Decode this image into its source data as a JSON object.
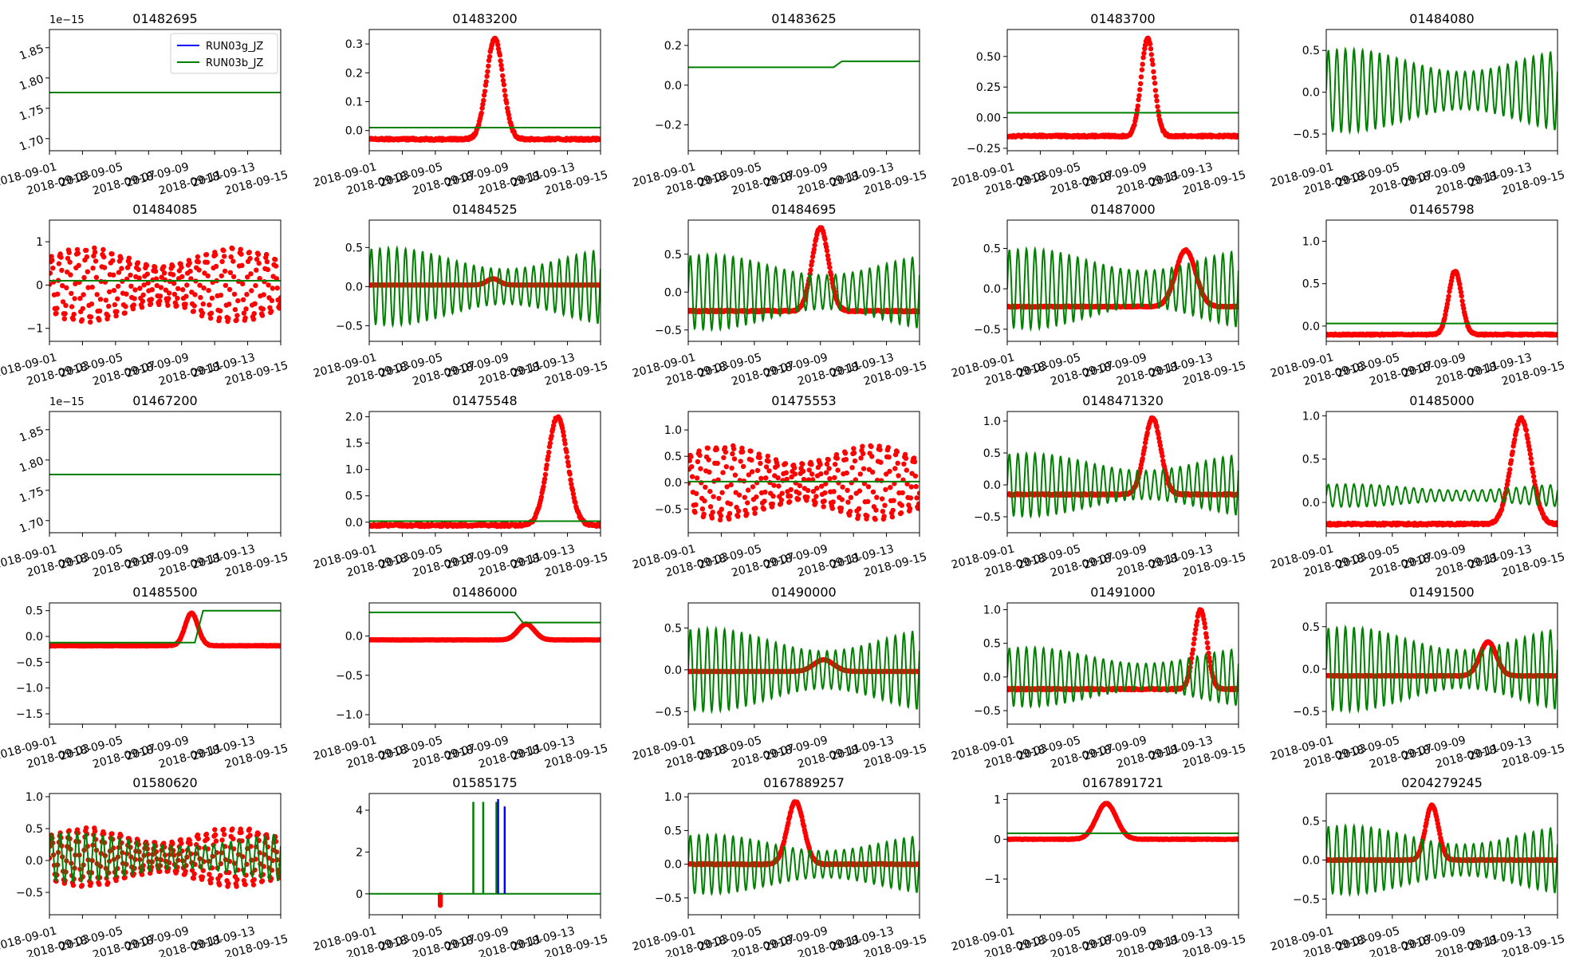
{
  "figure": {
    "type": "small-multiples",
    "x_tick_labels": [
      "2018-09-01",
      "2018-09-03",
      "2018-09-05",
      "2018-09-07",
      "2018-09-09",
      "2018-09-11",
      "2018-09-13",
      "2018-09-15"
    ],
    "legend": [
      {
        "name": "RUN03g_JZ",
        "color": "#0000ff"
      },
      {
        "name": "RUN03b_JZ",
        "color": "#008000"
      }
    ],
    "observed_color": "#ff0000"
  },
  "chart_data": [
    {
      "type": "line",
      "title": "01482695",
      "ylim": [
        1.68,
        1.88
      ],
      "yticks": [
        1.7,
        1.75,
        1.8,
        1.85
      ],
      "ytick_labels": [
        "1.70",
        "1.75",
        "1.80",
        "1.85"
      ],
      "offset_label": "1e−15",
      "flat_value": 1.776,
      "legend": true
    },
    {
      "type": "line",
      "title": "01483200",
      "ylim": [
        -0.07,
        0.35
      ],
      "yticks": [
        0.0,
        0.1,
        0.2,
        0.3
      ],
      "ytick_labels": [
        "0.0",
        "0.1",
        "0.2",
        "0.3"
      ],
      "model": "flat",
      "model_level": 0.01,
      "obs": "peak",
      "obs_base": -0.03,
      "obs_peak_day": 7.6,
      "obs_peak": 0.32
    },
    {
      "type": "line",
      "title": "01483625",
      "ylim": [
        -0.33,
        0.28
      ],
      "yticks": [
        -0.2,
        0.0,
        0.2
      ],
      "ytick_labels": [
        "−0.2",
        "0.0",
        "0.2"
      ],
      "model": "step",
      "model_level": 0.09,
      "model_level_2": 0.12
    },
    {
      "type": "line",
      "title": "01483700",
      "ylim": [
        -0.27,
        0.72
      ],
      "yticks": [
        -0.25,
        0.0,
        0.25,
        0.5
      ],
      "ytick_labels": [
        "−0.25",
        "0.00",
        "0.25",
        "0.50"
      ],
      "model": "flat",
      "model_level": 0.04,
      "obs": "peak",
      "obs_base": -0.15,
      "obs_peak_day": 8.5,
      "obs_peak": 0.65
    },
    {
      "type": "line",
      "title": "01484080",
      "ylim": [
        -0.7,
        0.75
      ],
      "yticks": [
        -0.5,
        0.0,
        0.5
      ],
      "ytick_labels": [
        "−0.5",
        "0.0",
        "0.5"
      ],
      "model": "tidal",
      "model_center": 0.02,
      "model_amp": 0.45
    },
    {
      "type": "line",
      "title": "01484085",
      "ylim": [
        -1.3,
        1.5
      ],
      "yticks": [
        -1,
        0,
        1
      ],
      "ytick_labels": [
        "−1",
        "0",
        "1"
      ],
      "model": "flat",
      "model_level": 0.1,
      "obs": "tidal",
      "obs_center": 0.0,
      "obs_amp": 0.85
    },
    {
      "type": "line",
      "title": "01484525",
      "ylim": [
        -0.7,
        0.85
      ],
      "yticks": [
        -0.5,
        0.0,
        0.5
      ],
      "ytick_labels": [
        "−0.5",
        "0.0",
        "0.5"
      ],
      "model": "tidal",
      "model_center": 0.0,
      "model_amp": 0.45,
      "obs": "peak",
      "obs_base": 0.02,
      "obs_peak_day": 7.5,
      "obs_peak": 0.1
    },
    {
      "type": "line",
      "title": "01484695",
      "ylim": [
        -0.65,
        0.95
      ],
      "yticks": [
        -0.5,
        0.0,
        0.5
      ],
      "ytick_labels": [
        "−0.5",
        "0.0",
        "0.5"
      ],
      "model": "tidal",
      "model_center": 0.0,
      "model_amp": 0.45,
      "obs": "peak",
      "obs_base": -0.25,
      "obs_peak_day": 8.0,
      "obs_peak": 0.85
    },
    {
      "type": "line",
      "title": "01487000",
      "ylim": [
        -0.65,
        0.85
      ],
      "yticks": [
        -0.5,
        0.0,
        0.5
      ],
      "ytick_labels": [
        "−0.5",
        "0.0",
        "0.5"
      ],
      "model": "tidal",
      "model_center": 0.0,
      "model_amp": 0.45,
      "obs": "peak",
      "obs_base": -0.22,
      "obs_peak_day": 10.8,
      "obs_peak": 0.48
    },
    {
      "type": "line",
      "title": "01465798",
      "ylim": [
        -0.18,
        1.25
      ],
      "yticks": [
        0.0,
        0.5,
        1.0
      ],
      "ytick_labels": [
        "0.0",
        "0.5",
        "1.0"
      ],
      "model": "flat",
      "model_level": 0.03,
      "obs": "peak",
      "obs_base": -0.1,
      "obs_peak_day": 7.8,
      "obs_peak": 0.65
    },
    {
      "type": "line",
      "title": "01467200",
      "ylim": [
        1.68,
        1.88
      ],
      "yticks": [
        1.7,
        1.75,
        1.8,
        1.85
      ],
      "ytick_labels": [
        "1.70",
        "1.75",
        "1.80",
        "1.85"
      ],
      "offset_label": "1e−15",
      "flat_value": 1.776
    },
    {
      "type": "line",
      "title": "01475548",
      "ylim": [
        -0.2,
        2.1
      ],
      "yticks": [
        0.0,
        0.5,
        1.0,
        1.5,
        2.0
      ],
      "ytick_labels": [
        "0.0",
        "0.5",
        "1.0",
        "1.5",
        "2.0"
      ],
      "model": "flat",
      "model_level": 0.02,
      "obs": "peak",
      "obs_base": -0.06,
      "obs_peak_day": 11.4,
      "obs_peak": 2.0
    },
    {
      "type": "line",
      "title": "01475553",
      "ylim": [
        -0.95,
        1.35
      ],
      "yticks": [
        -0.5,
        0.0,
        0.5,
        1.0
      ],
      "ytick_labels": [
        "−0.5",
        "0.0",
        "0.5",
        "1.0"
      ],
      "model": "flat",
      "model_level": 0.02,
      "obs": "tidal",
      "obs_center": 0.0,
      "obs_amp": 0.7
    },
    {
      "type": "line",
      "title": "0148471320",
      "ylim": [
        -0.75,
        1.15
      ],
      "yticks": [
        -0.5,
        0.0,
        0.5,
        1.0
      ],
      "ytick_labels": [
        "−0.5",
        "0.0",
        "0.5",
        "1.0"
      ],
      "model": "tidal",
      "model_center": 0.0,
      "model_amp": 0.45,
      "obs": "peak",
      "obs_base": -0.15,
      "obs_peak_day": 8.8,
      "obs_peak": 1.05
    },
    {
      "type": "line",
      "title": "01485000",
      "ylim": [
        -0.35,
        1.05
      ],
      "yticks": [
        0.0,
        0.5,
        1.0
      ],
      "ytick_labels": [
        "0.0",
        "0.5",
        "1.0"
      ],
      "model": "tidal",
      "model_center": 0.08,
      "model_amp": 0.12,
      "obs": "peak",
      "obs_base": -0.25,
      "obs_peak_day": 11.8,
      "obs_peak": 0.97
    },
    {
      "type": "line",
      "title": "01485500",
      "ylim": [
        -1.7,
        0.65
      ],
      "yticks": [
        -1.5,
        -1.0,
        -0.5,
        0.0,
        0.5
      ],
      "ytick_labels": [
        "−1.5",
        "−1.0",
        "−0.5",
        "0.0",
        "0.5"
      ],
      "model": "step",
      "model_level": -0.12,
      "model_level_2": 0.5,
      "obs": "peak",
      "obs_base": -0.18,
      "obs_peak_day": 8.6,
      "obs_peak": 0.45
    },
    {
      "type": "line",
      "title": "01486000",
      "ylim": [
        -1.12,
        0.42
      ],
      "yticks": [
        -1.0,
        -0.5,
        0.0
      ],
      "ytick_labels": [
        "−1.0",
        "−0.5",
        "0.0"
      ],
      "model": "step",
      "model_level": 0.3,
      "model_level_2": 0.17,
      "obs": "peak",
      "obs_base": -0.05,
      "obs_peak_day": 9.5,
      "obs_peak": 0.15
    },
    {
      "type": "line",
      "title": "01490000",
      "ylim": [
        -0.65,
        0.8
      ],
      "yticks": [
        -0.5,
        0.0,
        0.5
      ],
      "ytick_labels": [
        "−0.5",
        "0.0",
        "0.5"
      ],
      "model": "tidal",
      "model_center": 0.0,
      "model_amp": 0.45,
      "obs": "peak",
      "obs_base": -0.02,
      "obs_peak_day": 8.2,
      "obs_peak": 0.12
    },
    {
      "type": "line",
      "title": "01491000",
      "ylim": [
        -0.7,
        1.1
      ],
      "yticks": [
        -0.5,
        0.0,
        0.5,
        1.0
      ],
      "ytick_labels": [
        "−0.5",
        "0.0",
        "0.5",
        "1.0"
      ],
      "model": "tidal",
      "model_center": 0.0,
      "model_amp": 0.4,
      "obs": "peak",
      "obs_base": -0.18,
      "obs_peak_day": 11.7,
      "obs_peak": 1.0
    },
    {
      "type": "line",
      "title": "01491500",
      "ylim": [
        -0.65,
        0.78
      ],
      "yticks": [
        -0.5,
        0.0,
        0.5
      ],
      "ytick_labels": [
        "−0.5",
        "0.0",
        "0.5"
      ],
      "model": "tidal",
      "model_center": 0.0,
      "model_amp": 0.45,
      "obs": "peak",
      "obs_base": -0.08,
      "obs_peak_day": 9.8,
      "obs_peak": 0.32
    },
    {
      "type": "line",
      "title": "01580620",
      "ylim": [
        -0.85,
        1.05
      ],
      "yticks": [
        -0.5,
        0.0,
        0.5,
        1.0
      ],
      "ytick_labels": [
        "−0.5",
        "0.0",
        "0.5",
        "1.0"
      ],
      "model": "tidal",
      "model_center": 0.05,
      "model_amp": 0.35,
      "obs": "tidal",
      "obs_center": 0.05,
      "obs_amp": 0.45
    },
    {
      "type": "line",
      "title": "01585175",
      "ylim": [
        -1.0,
        4.8
      ],
      "yticks": [
        0,
        2,
        4
      ],
      "ytick_labels": [
        "0",
        "2",
        "4"
      ],
      "model": "spikes",
      "model_level": 0.0,
      "spike_days": [
        6.3,
        6.9,
        7.7
      ],
      "spike_days_blue": [
        7.8,
        8.2
      ],
      "spike_height": 4.4,
      "obs_dip_day": 4.3,
      "obs_dip": -0.55
    },
    {
      "type": "line",
      "title": "0167889257",
      "ylim": [
        -0.75,
        1.05
      ],
      "yticks": [
        -0.5,
        0.0,
        0.5,
        1.0
      ],
      "ytick_labels": [
        "−0.5",
        "0.0",
        "0.5",
        "1.0"
      ],
      "model": "tidal",
      "model_center": 0.0,
      "model_amp": 0.4,
      "obs": "peak",
      "obs_base": 0.0,
      "obs_peak_day": 6.5,
      "obs_peak": 0.93
    },
    {
      "type": "line",
      "title": "0167891721",
      "ylim": [
        -1.9,
        1.15
      ],
      "yticks": [
        -1,
        0,
        1
      ],
      "ytick_labels": [
        "−1",
        "0",
        "1"
      ],
      "model": "flat",
      "model_level": 0.15,
      "obs": "peak",
      "obs_base": 0.0,
      "obs_peak_day": 6.0,
      "obs_peak": 0.9
    },
    {
      "type": "line",
      "title": "0204279245",
      "ylim": [
        -0.7,
        0.85
      ],
      "yticks": [
        -0.5,
        0.0,
        0.5
      ],
      "ytick_labels": [
        "−0.5",
        "0.0",
        "0.5"
      ],
      "model": "tidal",
      "model_center": 0.0,
      "model_amp": 0.4,
      "obs": "peak",
      "obs_base": 0.0,
      "obs_peak_day": 6.4,
      "obs_peak": 0.7
    }
  ]
}
